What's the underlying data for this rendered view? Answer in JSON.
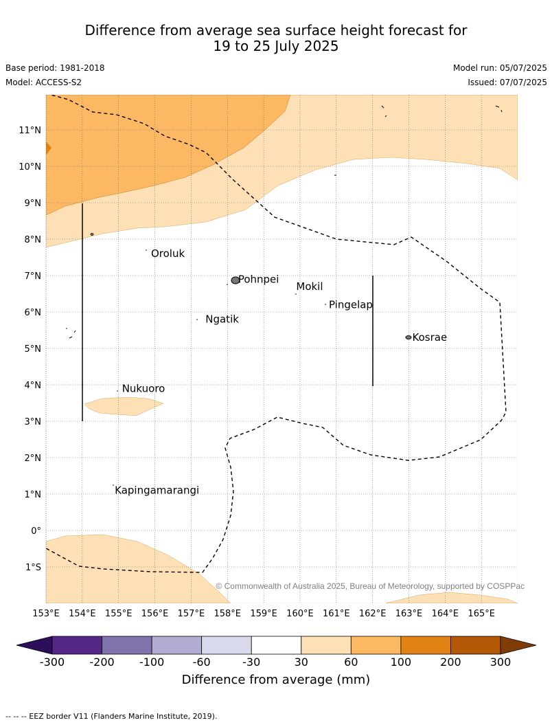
{
  "title": {
    "line1": "Difference from average sea surface height forecast for",
    "line2": "19 to 25 July 2025"
  },
  "meta": {
    "base_period": "Base period: 1981-2018",
    "model": "Model: ACCESS-S2",
    "model_run": "Model run: 05/07/2025",
    "issued": "Issued: 07/07/2025"
  },
  "map": {
    "lat_labels": [
      "11°N",
      "10°N",
      "9°N",
      "8°N",
      "7°N",
      "6°N",
      "5°N",
      "4°N",
      "3°N",
      "2°N",
      "1°N",
      "0°",
      "1°S"
    ],
    "lon_labels": [
      "153°E",
      "154°E",
      "155°E",
      "156°E",
      "157°E",
      "158°E",
      "159°E",
      "160°E",
      "161°E",
      "162°E",
      "163°E",
      "164°E",
      "165°E"
    ],
    "gridlines": true,
    "places": [
      {
        "name": "Oroluk",
        "lon": 155.8,
        "lat": 7.6
      },
      {
        "name": "Pohnpei",
        "lon": 158.2,
        "lat": 6.9
      },
      {
        "name": "Mokil",
        "lon": 159.8,
        "lat": 6.7
      },
      {
        "name": "Pingelap",
        "lon": 160.7,
        "lat": 6.2
      },
      {
        "name": "Ngatik",
        "lon": 157.3,
        "lat": 5.8
      },
      {
        "name": "Kosrae",
        "lon": 163.0,
        "lat": 5.3
      },
      {
        "name": "Nukuoro",
        "lon": 155.0,
        "lat": 3.9
      },
      {
        "name": "Kapingamarangi",
        "lon": 154.8,
        "lat": 1.1
      }
    ],
    "copyright": "© Commonwealth of Australia 2025, Bureau of Meteorology, supported by COSPPac"
  },
  "colorbar": {
    "title": "Difference from average (mm)",
    "ticks": [
      "-300",
      "-200",
      "-100",
      "-60",
      "-30",
      "30",
      "60",
      "100",
      "200",
      "300"
    ],
    "colors": [
      "#2d0e5a",
      "#542788",
      "#8073ac",
      "#b2abd2",
      "#d8daeb",
      "#ffffff",
      "#fee0b6",
      "#fdb863",
      "#e08214",
      "#b35806",
      "#7f3b08"
    ]
  },
  "footer": "--  --  -- EEZ border V11 (Flanders Marine Institute, 2019)."
}
